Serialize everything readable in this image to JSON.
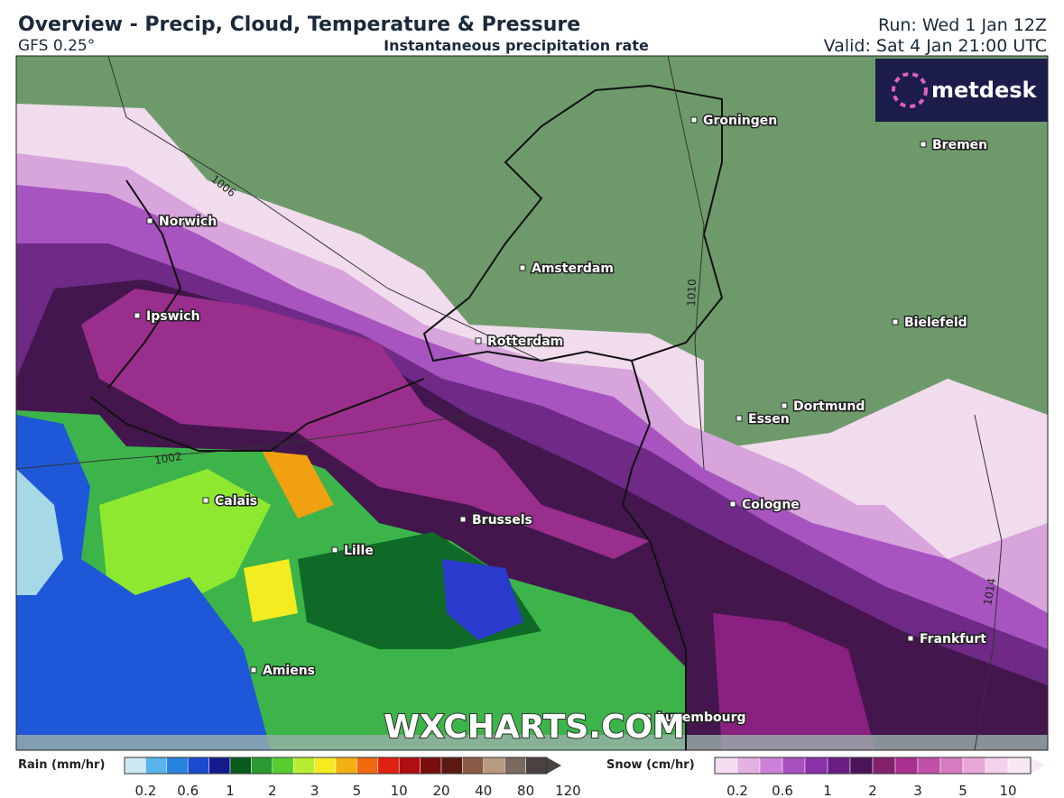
{
  "header": {
    "title": "Overview - Precip, Cloud, Temperature & Pressure",
    "model": "GFS 0.25°",
    "subtitle": "Instantaneous precipitation rate",
    "run": "Run: Wed 1 Jan 12Z",
    "valid": "Valid: Sat 4 Jan 21:00 UTC"
  },
  "logo": "metdesk",
  "watermark": "WXCHARTS.COM",
  "cities": [
    "Groningen",
    "Bremen",
    "Norwich",
    "Amsterdam",
    "Ipswich",
    "Rotterdam",
    "Bielefeld",
    "Dortmund",
    "Essen",
    "Calais",
    "Cologne",
    "Brussels",
    "Lille",
    "Frankfurt",
    "Amiens",
    "Luxembourg"
  ],
  "isobars": [
    "1006",
    "1010",
    "1002",
    "1014"
  ],
  "legend": {
    "rain": {
      "label": "Rain (mm/hr)",
      "ticks": [
        "0.2",
        "0.6",
        "1",
        "2",
        "3",
        "5",
        "10",
        "20",
        "40",
        "80",
        "120"
      ]
    },
    "snow": {
      "label": "Snow (cm/hr)",
      "ticks": [
        "0.2",
        "0.6",
        "1",
        "2",
        "3",
        "5",
        "10"
      ]
    }
  }
}
